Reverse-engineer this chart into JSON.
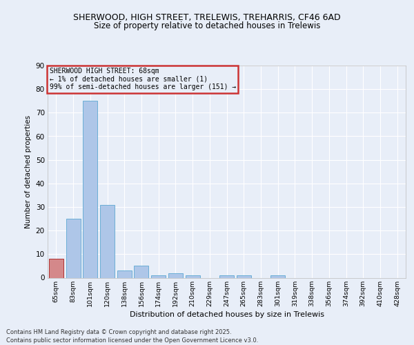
{
  "title1": "SHERWOOD, HIGH STREET, TRELEWIS, TREHARRIS, CF46 6AD",
  "title2": "Size of property relative to detached houses in Trelewis",
  "xlabel": "Distribution of detached houses by size in Trelewis",
  "ylabel": "Number of detached properties",
  "categories": [
    "65sqm",
    "83sqm",
    "101sqm",
    "120sqm",
    "138sqm",
    "156sqm",
    "174sqm",
    "192sqm",
    "210sqm",
    "229sqm",
    "247sqm",
    "265sqm",
    "283sqm",
    "301sqm",
    "319sqm",
    "338sqm",
    "356sqm",
    "374sqm",
    "392sqm",
    "410sqm",
    "428sqm"
  ],
  "values": [
    8,
    25,
    75,
    31,
    3,
    5,
    1,
    2,
    1,
    0,
    1,
    1,
    0,
    1,
    0,
    0,
    0,
    0,
    0,
    0,
    0
  ],
  "bar_color": "#aec6e8",
  "bar_edge_color": "#6baed6",
  "highlight_index": 0,
  "highlight_color": "#d4888a",
  "highlight_edge_color": "#b03030",
  "annotation_text": "SHERWOOD HIGH STREET: 68sqm\n← 1% of detached houses are smaller (1)\n99% of semi-detached houses are larger (151) →",
  "annotation_box_edge": "#cc3333",
  "ylim": [
    0,
    90
  ],
  "yticks": [
    0,
    10,
    20,
    30,
    40,
    50,
    60,
    70,
    80,
    90
  ],
  "footer": "Contains HM Land Registry data © Crown copyright and database right 2025.\nContains public sector information licensed under the Open Government Licence v3.0.",
  "bg_color": "#e8eef8",
  "grid_color": "#ffffff"
}
